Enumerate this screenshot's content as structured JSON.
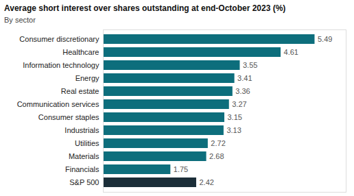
{
  "chart_data": {
    "type": "bar",
    "orientation": "horizontal",
    "title": "Average short interest over shares outstanding at end-October 2023 (%)",
    "subtitle": "By sector",
    "categories": [
      "Consumer discretionary",
      "Healthcare",
      "Information technology",
      "Energy",
      "Real estate",
      "Communication services",
      "Consumer staples",
      "Industrials",
      "Utilities",
      "Materials",
      "Financials",
      "S&P 500"
    ],
    "values": [
      5.49,
      4.61,
      3.55,
      3.41,
      3.36,
      3.27,
      3.15,
      3.13,
      2.72,
      2.68,
      1.75,
      2.42
    ],
    "colors": [
      "#0d6e7c",
      "#0d6e7c",
      "#0d6e7c",
      "#0d6e7c",
      "#0d6e7c",
      "#0d6e7c",
      "#0d6e7c",
      "#0d6e7c",
      "#0d6e7c",
      "#0d6e7c",
      "#0d6e7c",
      "#1b2e38"
    ],
    "xlim": [
      0,
      6.3
    ],
    "data_labels": true,
    "tick_labels": "y",
    "grid": false
  }
}
